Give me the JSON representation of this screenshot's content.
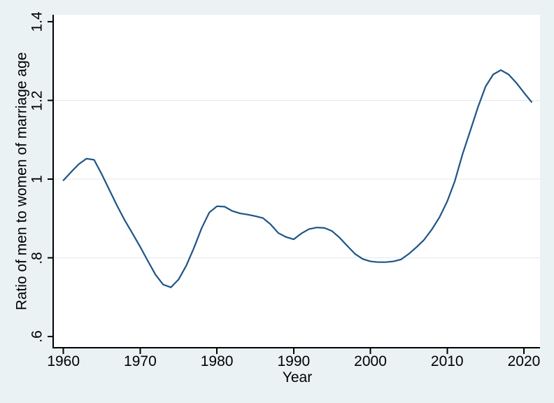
{
  "figure": {
    "background_color": "#eaf2f3",
    "plot_background_color": "#ffffff",
    "line_color": "#1e5486",
    "grid_color": "#e0eaee",
    "axis_color": "#000000"
  },
  "chart_data": {
    "type": "line",
    "title": "",
    "xlabel": "Year",
    "ylabel": "Ratio of men to women of marriage age",
    "x_tick_values": [
      1960,
      1970,
      1980,
      1990,
      2000,
      2010,
      2020
    ],
    "x_tick_labels": [
      "1960",
      "1970",
      "1980",
      "1990",
      "2000",
      "2010",
      "2020"
    ],
    "y_tick_values": [
      0.6,
      0.8,
      1.0,
      1.2,
      1.4
    ],
    "y_tick_labels": [
      ".6",
      ".8",
      "1",
      "1.2",
      "1.4"
    ],
    "grid_values": [
      0.8,
      1.0,
      1.2
    ],
    "xlim": [
      1958.66,
      2022.1
    ],
    "ylim": [
      0.5716,
      1.4178
    ],
    "legend": "none",
    "series": [
      {
        "name": "ratio-men-to-women-of-marriage-age",
        "x": [
          1960,
          1961,
          1962,
          1963,
          1964,
          1965,
          1966,
          1967,
          1968,
          1969,
          1970,
          1971,
          1972,
          1973,
          1974,
          1975,
          1976,
          1977,
          1978,
          1979,
          1980,
          1981,
          1982,
          1983,
          1984,
          1985,
          1986,
          1987,
          1988,
          1989,
          1990,
          1991,
          1992,
          1993,
          1994,
          1995,
          1996,
          1997,
          1998,
          1999,
          2000,
          2001,
          2002,
          2003,
          2004,
          2005,
          2006,
          2007,
          2008,
          2009,
          2010,
          2011,
          2012,
          2013,
          2014,
          2015,
          2016,
          2017,
          2018,
          2019,
          2020,
          2021
        ],
        "y": [
          0.997,
          1.018,
          1.038,
          1.052,
          1.049,
          1.012,
          0.972,
          0.932,
          0.895,
          0.862,
          0.828,
          0.792,
          0.757,
          0.732,
          0.725,
          0.745,
          0.78,
          0.825,
          0.875,
          0.915,
          0.931,
          0.93,
          0.919,
          0.913,
          0.91,
          0.906,
          0.901,
          0.885,
          0.863,
          0.853,
          0.847,
          0.862,
          0.873,
          0.877,
          0.876,
          0.868,
          0.851,
          0.83,
          0.81,
          0.797,
          0.791,
          0.789,
          0.789,
          0.791,
          0.796,
          0.81,
          0.827,
          0.846,
          0.872,
          0.903,
          0.943,
          0.995,
          1.063,
          1.122,
          1.182,
          1.235,
          1.266,
          1.277,
          1.266,
          1.245,
          1.22,
          1.196
        ]
      }
    ]
  }
}
